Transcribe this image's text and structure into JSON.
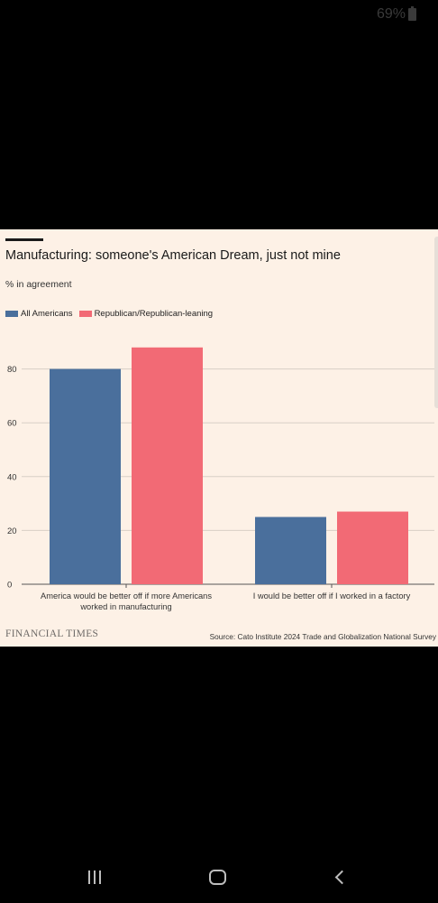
{
  "status_bar": {
    "battery_percent": "69%"
  },
  "chart_card": {
    "title": "Manufacturing: someone's American Dream, just not mine",
    "subtitle": "% in agreement",
    "logo_text": "FINANCIAL TIMES",
    "source": "Source: Cato Institute 2024 Trade and Globalization National Survey"
  },
  "chart_data": {
    "type": "bar",
    "title": "Manufacturing: someone's American Dream, just not mine",
    "subtitle": "% in agreement",
    "categories": [
      [
        "America would be better off if more Americans",
        "worked in manufacturing"
      ],
      [
        "I would be better off if I worked in a factory"
      ]
    ],
    "series": [
      {
        "name": "All Americans",
        "color": "#4a6f9c",
        "values": [
          80,
          25
        ]
      },
      {
        "name": "Republican/Republican-leaning",
        "color": "#f26a75",
        "values": [
          88,
          27
        ]
      }
    ],
    "ylim": [
      0,
      90
    ],
    "yticks": [
      0,
      20,
      40,
      60,
      80
    ],
    "grid": true,
    "legend_position": "top-left"
  },
  "nav_bar": {
    "recents_icon": "recents-icon",
    "home_icon": "home-icon",
    "back_icon": "back-icon"
  }
}
